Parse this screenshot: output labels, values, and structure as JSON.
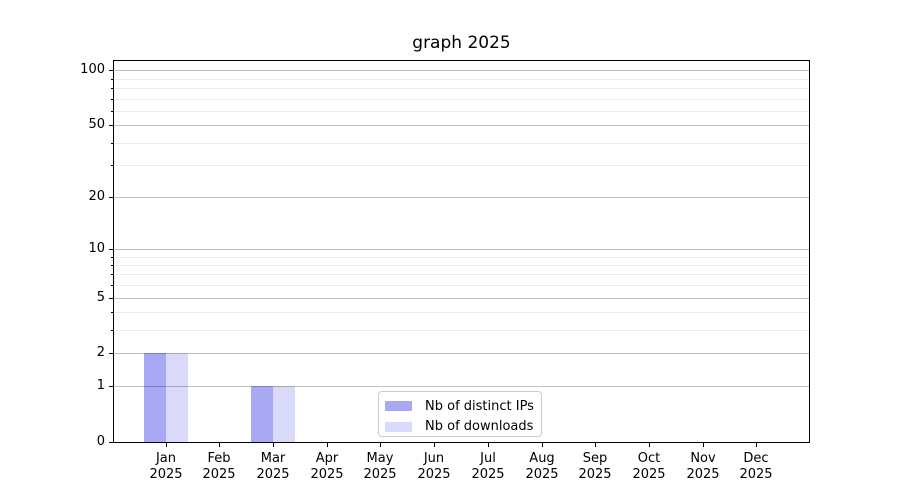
{
  "chart_data": {
    "type": "bar",
    "title": "graph 2025",
    "categories": [
      "Jan",
      "Feb",
      "Mar",
      "Apr",
      "May",
      "Jun",
      "Jul",
      "Aug",
      "Sep",
      "Oct",
      "Nov",
      "Dec"
    ],
    "category_sublabel": "2025",
    "series": [
      {
        "name": "Nb of distinct IPs",
        "color": "#a8a8f5",
        "values": [
          2,
          0,
          1,
          0,
          0,
          0,
          0,
          0,
          0,
          0,
          0,
          0
        ]
      },
      {
        "name": "Nb of downloads",
        "color": "#d9d9fa",
        "values": [
          2,
          0,
          1,
          0,
          0,
          0,
          0,
          0,
          0,
          0,
          0,
          0
        ]
      }
    ],
    "y_axis": {
      "scale": "log1p",
      "major_ticks": [
        0,
        1,
        2,
        5,
        10,
        20,
        50,
        100
      ],
      "minor_ticks": [
        3,
        4,
        6,
        7,
        8,
        9,
        30,
        40,
        60,
        70,
        80,
        90
      ],
      "ylim": [
        0,
        115
      ]
    },
    "legend": {
      "position": "lower center",
      "entries": [
        "Nb of distinct IPs",
        "Nb of downloads"
      ]
    },
    "grid": true
  }
}
